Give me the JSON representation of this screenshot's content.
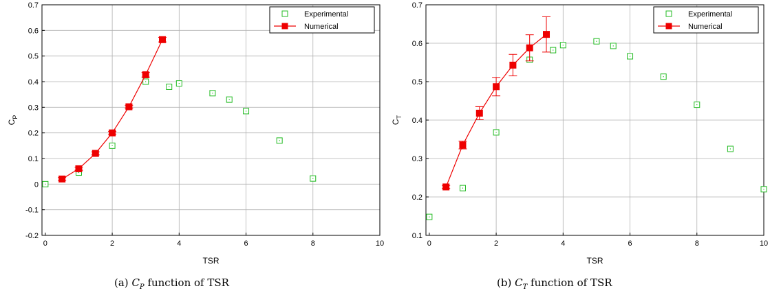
{
  "chart_data": [
    {
      "type": "scatter",
      "id": "a",
      "xlabel": "TSR",
      "ylabel": "C",
      "ylabel_sub": "P",
      "xlim": [
        -0.1,
        10
      ],
      "ylim": [
        -0.2,
        0.7
      ],
      "xticks": [
        0,
        2,
        4,
        6,
        8,
        10
      ],
      "yticks": [
        -0.2,
        -0.1,
        0,
        0.1,
        0.2,
        0.3,
        0.4,
        0.5,
        0.6,
        0.7
      ],
      "grid": true,
      "legend_position": "top-right",
      "caption": {
        "label": "(a)",
        "symbol": "C",
        "sub": "P",
        "text": "function of TSR"
      },
      "series": [
        {
          "name": "Experimental",
          "color": "#22bb22",
          "marker": "square-open",
          "line": false,
          "x": [
            0,
            1,
            2,
            3,
            3.7,
            4,
            5,
            5.5,
            6,
            7,
            8
          ],
          "y": [
            0.0,
            0.045,
            0.15,
            0.4,
            0.38,
            0.393,
            0.355,
            0.33,
            0.285,
            0.17,
            0.022
          ]
        },
        {
          "name": "Numerical",
          "color": "#ee0000",
          "marker": "square-filled",
          "line": true,
          "x": [
            0.5,
            1,
            1.5,
            2,
            2.5,
            3,
            3.5
          ],
          "y": [
            0.02,
            0.06,
            0.12,
            0.2,
            0.302,
            0.427,
            0.564
          ],
          "err": [
            0.006,
            0.006,
            0.006,
            0.006,
            0.006,
            0.009,
            0.009
          ]
        }
      ]
    },
    {
      "type": "scatter",
      "id": "b",
      "xlabel": "TSR",
      "ylabel": "C",
      "ylabel_sub": "T",
      "xlim": [
        -0.1,
        10
      ],
      "ylim": [
        0.1,
        0.7
      ],
      "xticks": [
        0,
        2,
        4,
        6,
        8,
        10
      ],
      "yticks": [
        0.1,
        0.2,
        0.3,
        0.4,
        0.5,
        0.6,
        0.7
      ],
      "grid": true,
      "legend_position": "top-right",
      "caption": {
        "label": "(b)",
        "symbol": "C",
        "sub": "T",
        "text": "function of TSR"
      },
      "series": [
        {
          "name": "Experimental",
          "color": "#22bb22",
          "marker": "square-open",
          "line": false,
          "x": [
            0,
            1,
            2,
            3,
            3.7,
            4,
            5,
            5.5,
            6,
            7,
            8,
            9,
            10
          ],
          "y": [
            0.148,
            0.223,
            0.368,
            0.557,
            0.582,
            0.595,
            0.605,
            0.593,
            0.566,
            0.513,
            0.44,
            0.325,
            0.22
          ]
        },
        {
          "name": "Numerical",
          "color": "#ee0000",
          "marker": "square-filled",
          "line": true,
          "x": [
            0.5,
            1,
            1.5,
            2,
            2.5,
            3,
            3.5
          ],
          "y": [
            0.226,
            0.335,
            0.418,
            0.487,
            0.543,
            0.588,
            0.623
          ],
          "err": [
            0.004,
            0.01,
            0.017,
            0.024,
            0.028,
            0.034,
            0.046
          ]
        }
      ]
    }
  ]
}
